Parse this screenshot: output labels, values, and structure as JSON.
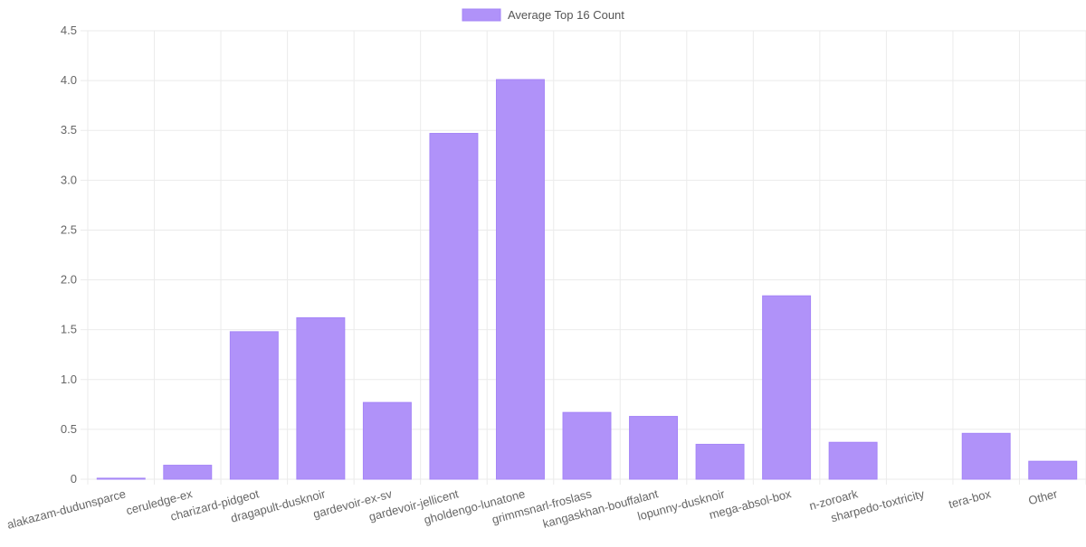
{
  "chart_data": {
    "type": "bar",
    "legend": {
      "position": "top-center",
      "entries": [
        "Average Top 16 Count"
      ]
    },
    "categories": [
      "alakazam-dudunsparce",
      "ceruledge-ex",
      "charizard-pidgeot",
      "dragapult-dusknoir",
      "gardevoir-ex-sv",
      "gardevoir-jellicent",
      "gholdengo-lunatone",
      "grimmsnarl-froslass",
      "kangaskhan-bouffalant",
      "lopunny-dusknoir",
      "mega-absol-box",
      "n-zoroark",
      "sharpedo-toxtricity",
      "tera-box",
      "Other"
    ],
    "series": [
      {
        "name": "Average Top 16 Count",
        "values": [
          0.01,
          0.14,
          1.48,
          1.62,
          0.77,
          3.47,
          4.01,
          0.67,
          0.63,
          0.35,
          1.84,
          0.37,
          0.0,
          0.46,
          0.18
        ],
        "color": "#b092f9",
        "border_color": "#a585f7"
      }
    ],
    "ylim": [
      0,
      4.5
    ],
    "yticks": [
      "0",
      "0.5",
      "1.0",
      "1.5",
      "2.0",
      "2.5",
      "3.0",
      "3.5",
      "4.0",
      "4.5"
    ],
    "grid": true,
    "colors": {
      "grid": "#ebebeb",
      "tick_text": "#666666",
      "legend_text": "#555555"
    }
  }
}
